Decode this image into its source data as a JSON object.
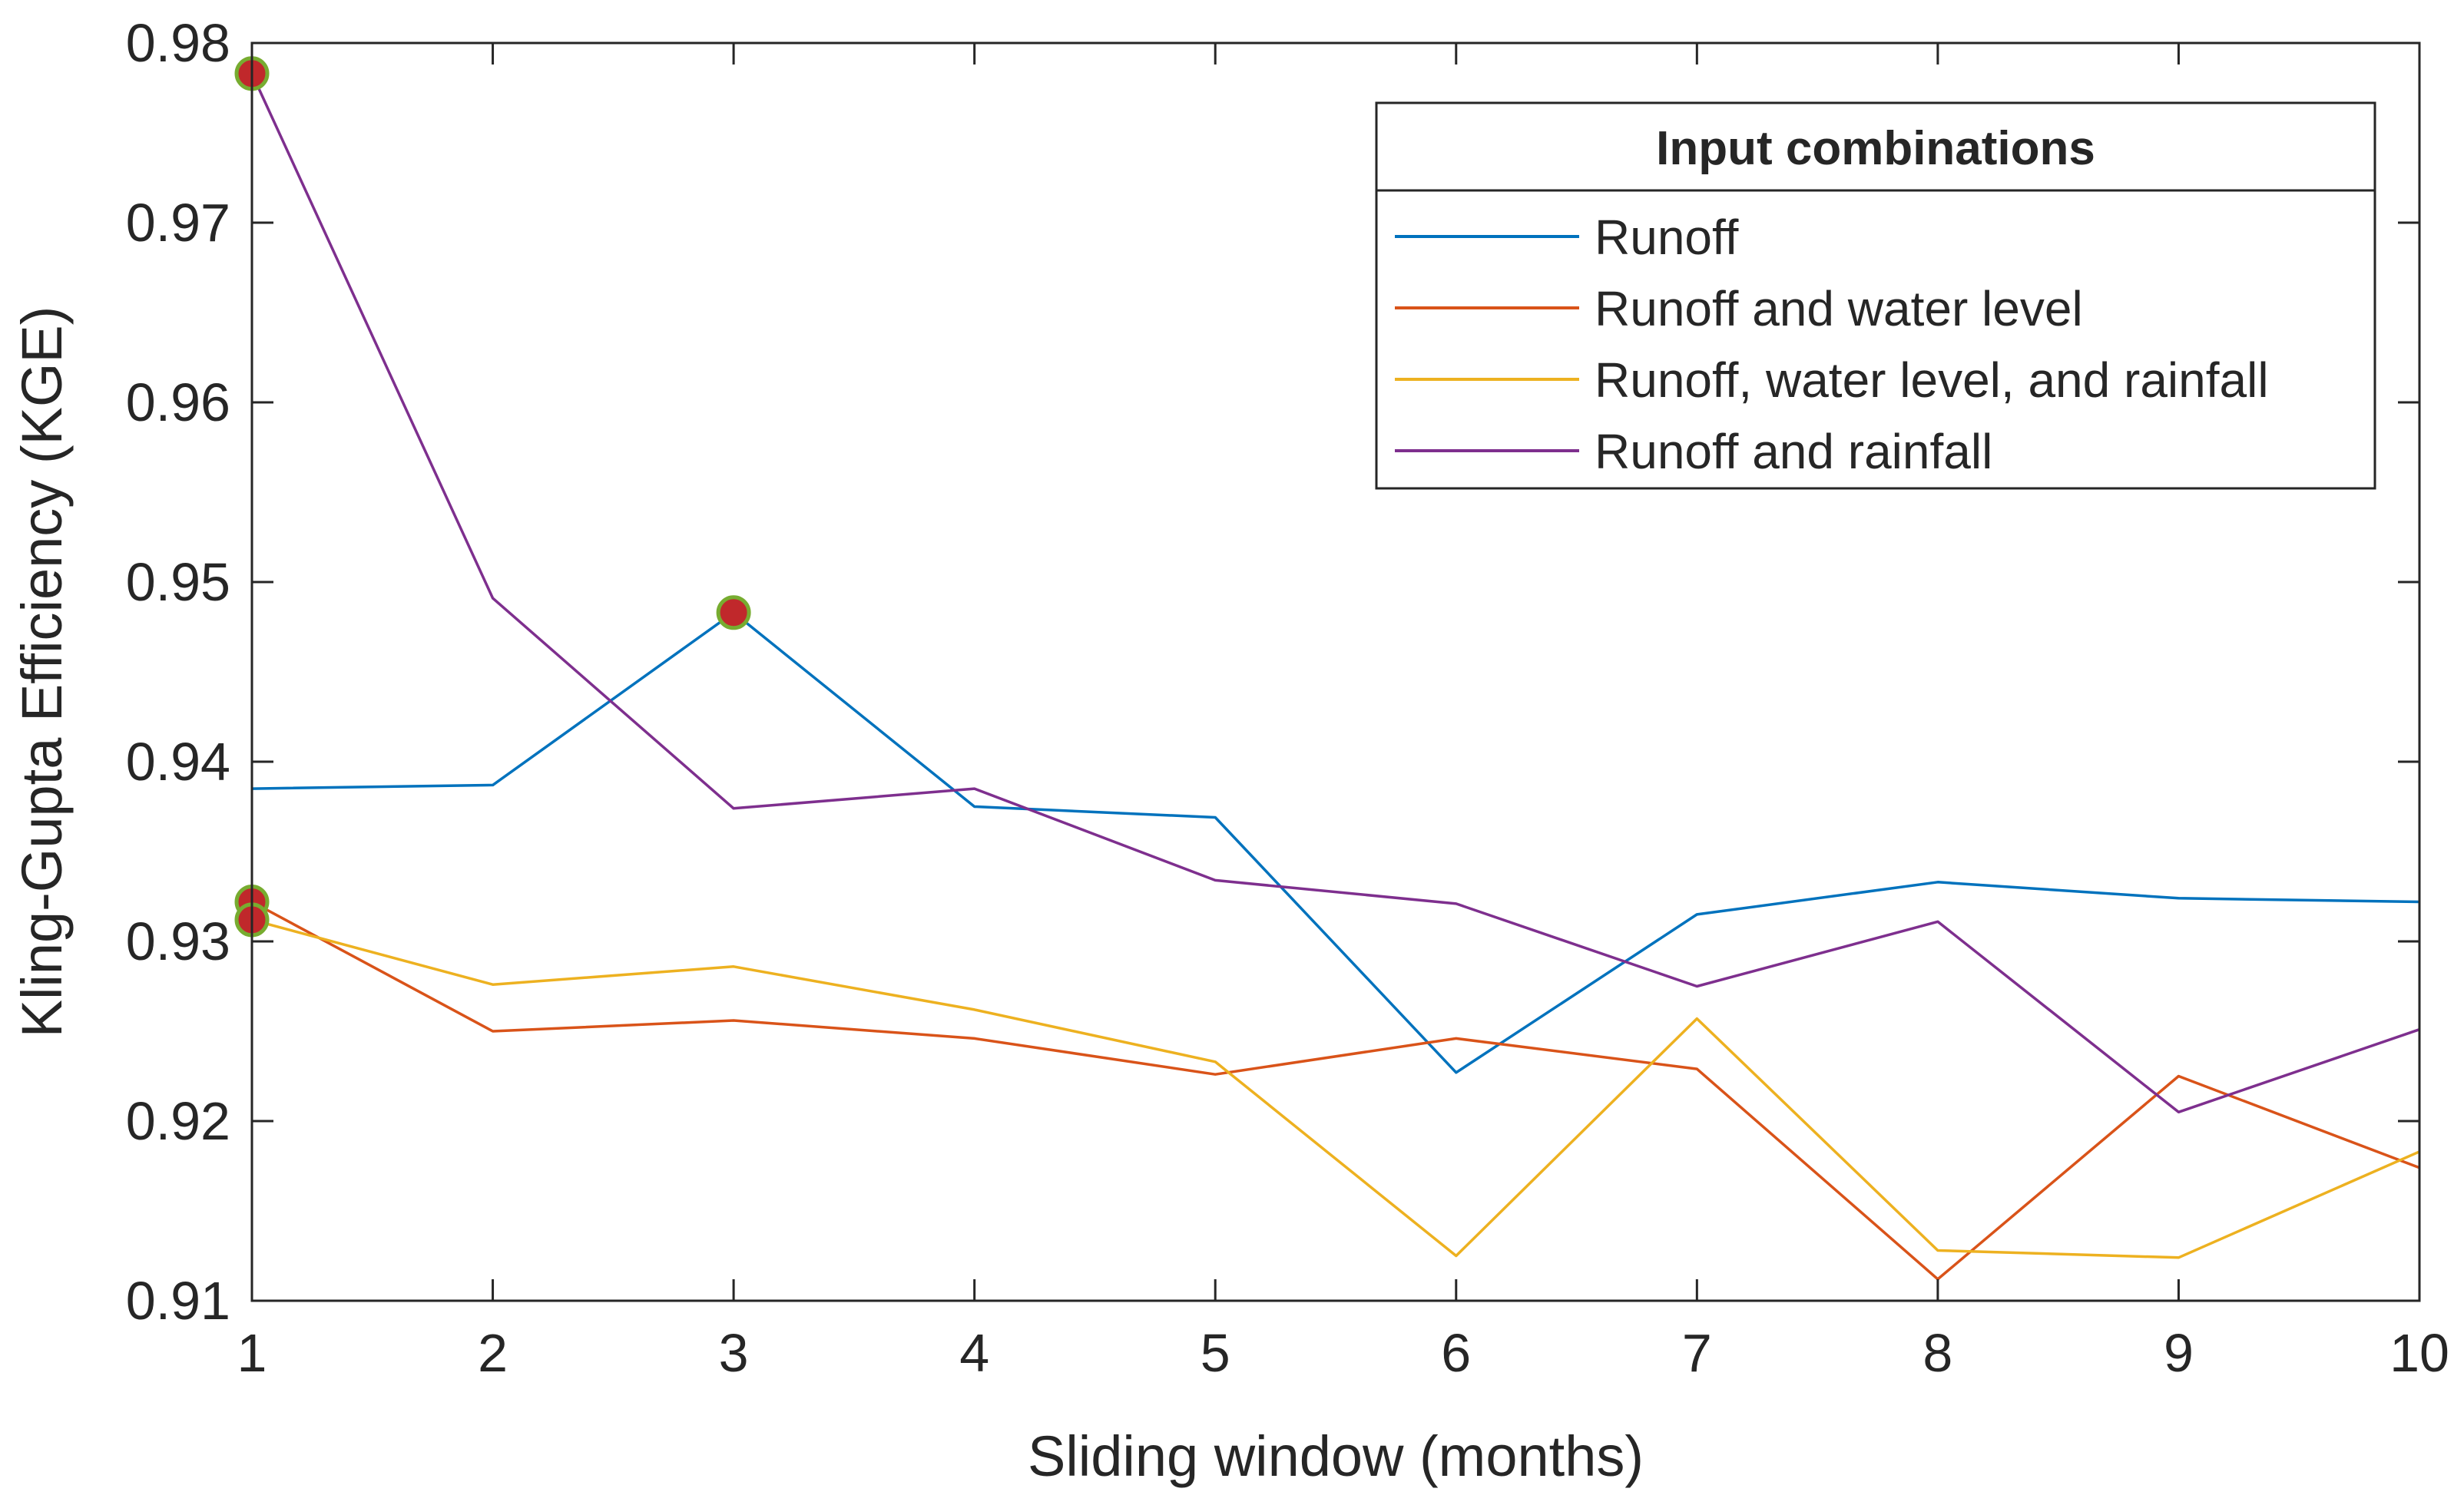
{
  "chart_data": {
    "type": "line",
    "title": "",
    "xlabel": "Sliding window (months)",
    "ylabel": "Kling-Gupta Efficiency (KGE)",
    "x": [
      1,
      2,
      3,
      4,
      5,
      6,
      7,
      8,
      9,
      10
    ],
    "xlim": [
      1,
      10
    ],
    "ylim": [
      0.91,
      0.98
    ],
    "xticks": [
      1,
      2,
      3,
      4,
      5,
      6,
      7,
      8,
      9,
      10
    ],
    "xtick_labels": [
      "1",
      "2",
      "3",
      "4",
      "5",
      "6",
      "7",
      "8",
      "9",
      "10"
    ],
    "yticks": [
      0.91,
      0.92,
      0.93,
      0.94,
      0.95,
      0.96,
      0.97,
      0.98
    ],
    "ytick_labels": [
      "0.91",
      "0.92",
      "0.93",
      "0.94",
      "0.95",
      "0.96",
      "0.97",
      "0.98"
    ],
    "grid": false,
    "legend": {
      "title": "Input combinations",
      "position": "top-right"
    },
    "series": [
      {
        "name": "Runoff",
        "color": "#0072BD",
        "values": [
          0.9385,
          0.9387,
          0.9483,
          0.9375,
          0.9369,
          0.9227,
          0.9315,
          0.9333,
          0.9324,
          0.9322
        ]
      },
      {
        "name": "Runoff and water level",
        "color": "#D95319",
        "values": [
          0.9322,
          0.925,
          0.9256,
          0.9246,
          0.9226,
          0.9246,
          0.9229,
          0.9112,
          0.9225,
          0.9174
        ]
      },
      {
        "name": "Runoff, water level, and rainfall",
        "color": "#EDB120",
        "values": [
          0.9312,
          0.9276,
          0.9286,
          0.9262,
          0.9233,
          0.9125,
          0.9257,
          0.9128,
          0.9124,
          0.9183
        ]
      },
      {
        "name": "Runoff and rainfall",
        "color": "#7E2F8E",
        "values": [
          0.9783,
          0.9491,
          0.9374,
          0.9385,
          0.9334,
          0.9321,
          0.9275,
          0.9311,
          0.9205,
          0.9251
        ]
      }
    ],
    "highlighted_points": [
      {
        "series": "Runoff and rainfall",
        "x": 1,
        "y": 0.9783
      },
      {
        "series": "Runoff",
        "x": 3,
        "y": 0.9483
      },
      {
        "series": "Runoff and water level",
        "x": 1,
        "y": 0.9322
      },
      {
        "series": "Runoff, water level, and rainfall",
        "x": 1,
        "y": 0.9312
      }
    ],
    "marker_fill": "#C0282B",
    "marker_edge": "#77AC30"
  }
}
